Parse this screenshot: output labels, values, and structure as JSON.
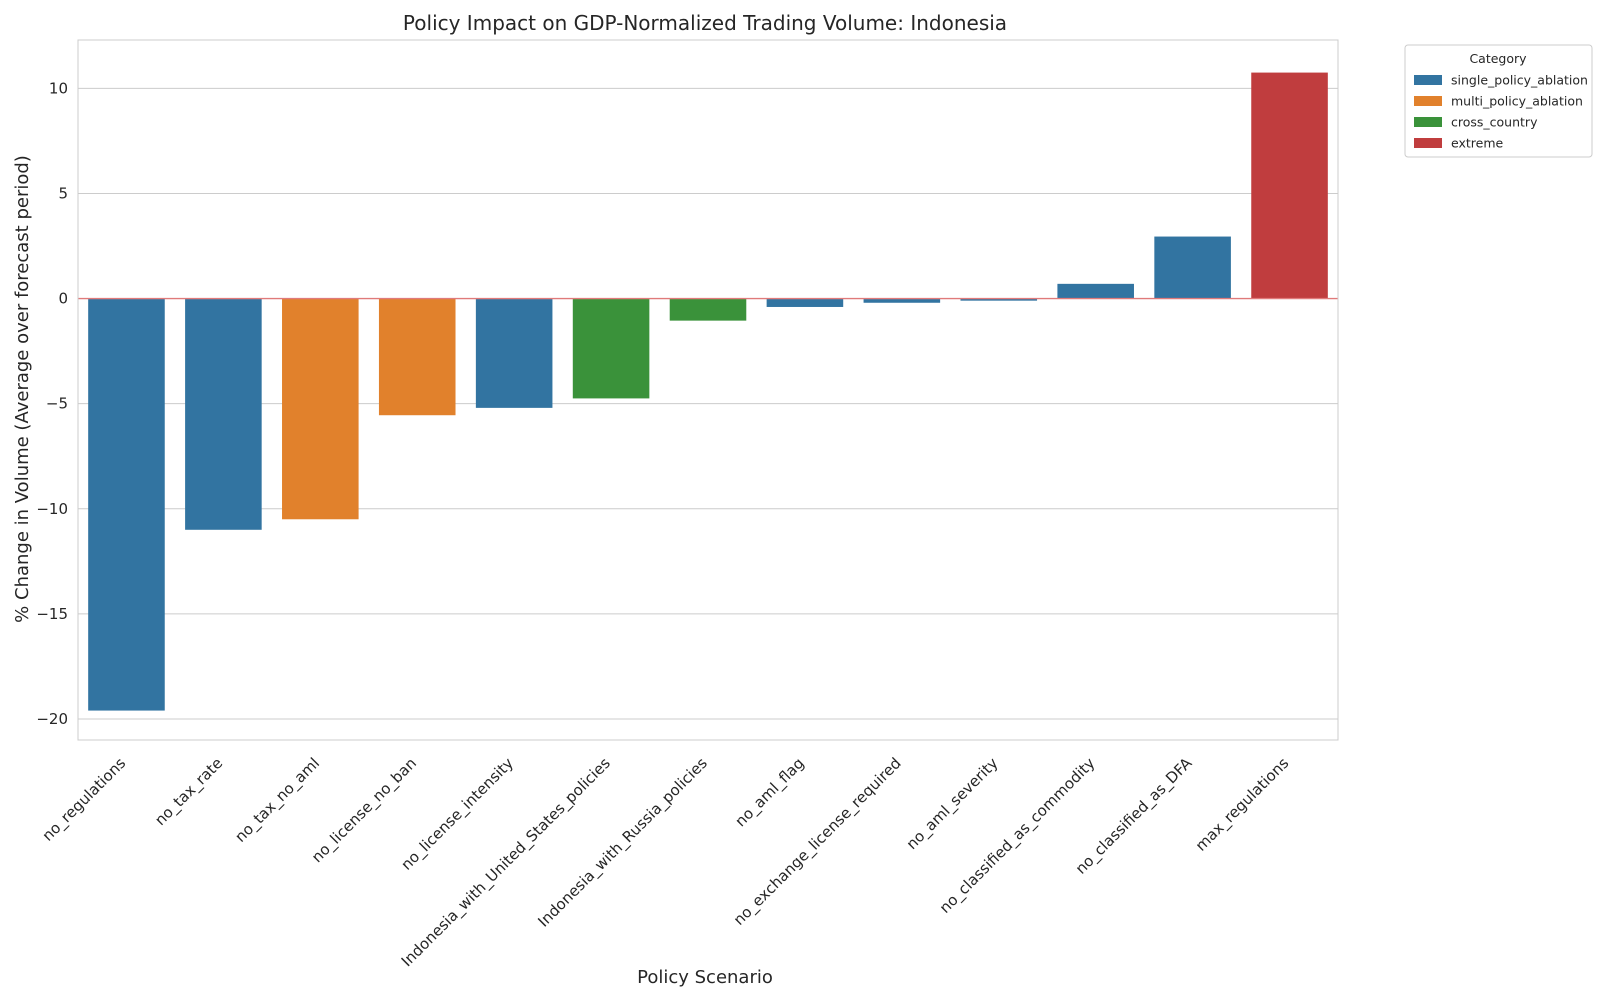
{
  "chart_data": {
    "type": "bar",
    "title": "Policy Impact on GDP-Normalized Trading Volume: Indonesia",
    "xlabel": "Policy Scenario",
    "ylabel": "% Change in Volume (Average over forecast period)",
    "ylim": [
      -21,
      12.3
    ],
    "yticks": [
      10,
      5,
      0,
      -5,
      -10,
      -15,
      -20
    ],
    "ytick_labels": [
      "10",
      "5",
      "0",
      "−5",
      "−10",
      "−15",
      "−20"
    ],
    "grid": true,
    "zero_line_color": "#e07a7a",
    "legend": {
      "title": "Category",
      "placement": "outside-top-right",
      "entries": [
        {
          "name": "single_policy_ablation",
          "color": "#3274a1"
        },
        {
          "name": "multi_policy_ablation",
          "color": "#e1812c"
        },
        {
          "name": "cross_country",
          "color": "#3a923a"
        },
        {
          "name": "extreme",
          "color": "#c03d3e"
        }
      ]
    },
    "categories": [
      "no_regulations",
      "no_tax_rate",
      "no_tax_no_aml",
      "no_license_no_ban",
      "no_license_intensity",
      "Indonesia_with_United_States_policies",
      "Indonesia_with_Russia_policies",
      "no_aml_flag",
      "no_exchange_license_required",
      "no_aml_severity",
      "no_classified_as_commodity",
      "no_classified_as_DFA",
      "max_regulations"
    ],
    "values": [
      -19.6,
      -11.0,
      -10.5,
      -5.55,
      -5.2,
      -4.75,
      -1.05,
      -0.4,
      -0.2,
      -0.1,
      0.7,
      2.95,
      10.75
    ],
    "bar_categories": [
      "single_policy_ablation",
      "single_policy_ablation",
      "multi_policy_ablation",
      "multi_policy_ablation",
      "single_policy_ablation",
      "cross_country",
      "cross_country",
      "single_policy_ablation",
      "single_policy_ablation",
      "single_policy_ablation",
      "single_policy_ablation",
      "single_policy_ablation",
      "extreme"
    ]
  }
}
